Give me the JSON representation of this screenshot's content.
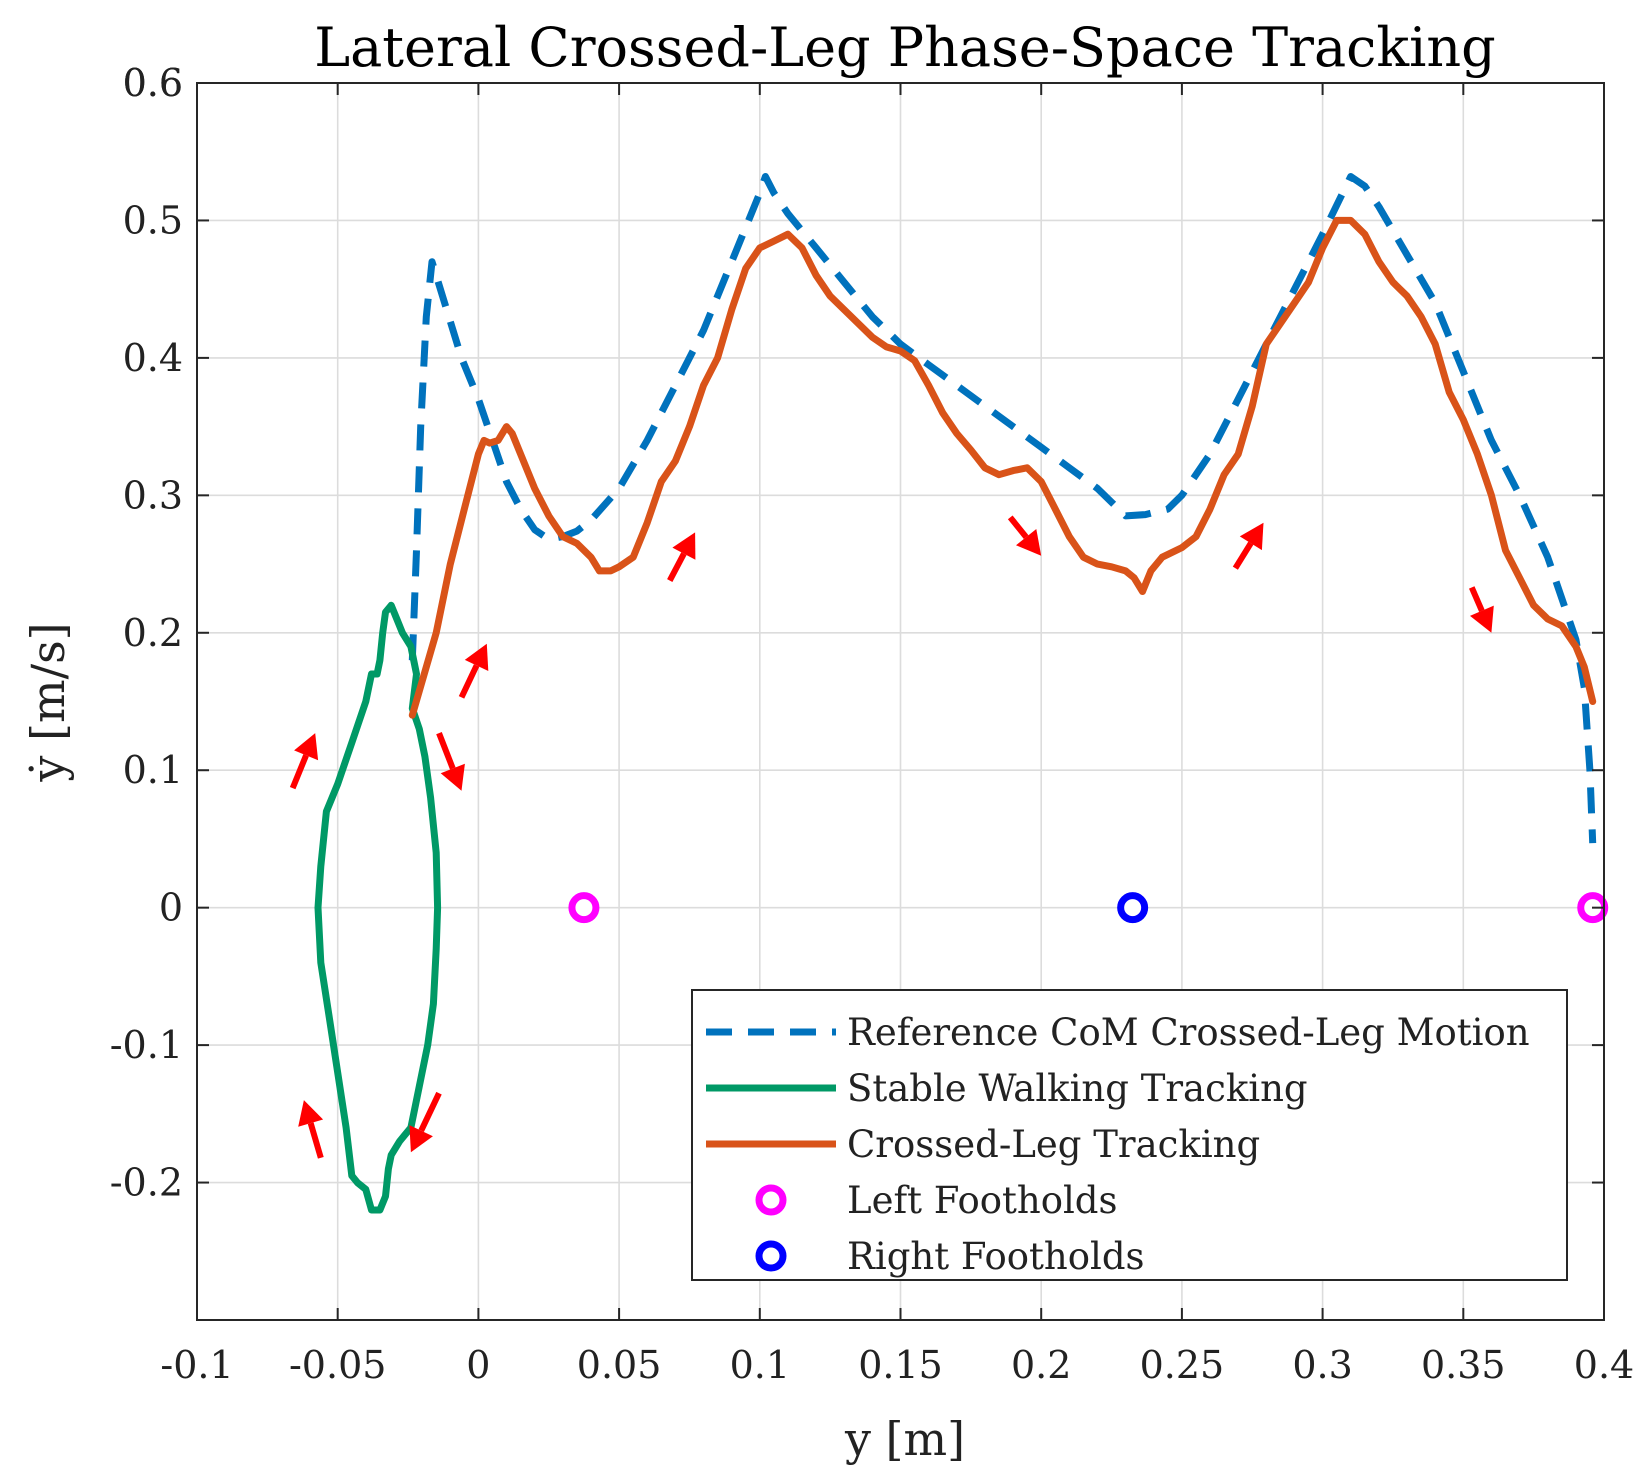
{
  "chart_data": {
    "type": "line",
    "title": "Lateral Crossed-Leg Phase-Space Tracking",
    "xlabel": "y [m]",
    "ylabel": "ẏ [m/s]",
    "xlim": [
      -0.1,
      0.4
    ],
    "ylim": [
      -0.3,
      0.6
    ],
    "xticks": [
      -0.1,
      -0.05,
      0,
      0.05,
      0.1,
      0.15,
      0.2,
      0.25,
      0.3,
      0.35,
      0.4
    ],
    "xtick_labels": [
      "-0.1",
      "-0.05",
      "0",
      "0.05",
      "0.1",
      "0.15",
      "0.2",
      "0.25",
      "0.3",
      "0.35",
      "0.4"
    ],
    "yticks": [
      -0.2,
      -0.1,
      0,
      0.1,
      0.2,
      0.3,
      0.4,
      0.5,
      0.6
    ],
    "ytick_labels": [
      "-0.2",
      "-0.1",
      "0",
      "0.1",
      "0.2",
      "0.3",
      "0.4",
      "0.5",
      "0.6"
    ],
    "grid": true,
    "legend_position": "bottom-right",
    "series": [
      {
        "name": "Reference CoM Crossed-Leg Motion",
        "style": "dashed",
        "color": "#0072BD",
        "points": [
          [
            -0.0235,
            0.18
          ],
          [
            -0.022,
            0.26
          ],
          [
            -0.0205,
            0.35
          ],
          [
            -0.0185,
            0.43
          ],
          [
            -0.0165,
            0.47
          ],
          [
            -0.012,
            0.44
          ],
          [
            -0.006,
            0.4
          ],
          [
            0.0,
            0.37
          ],
          [
            0.005,
            0.34
          ],
          [
            0.01,
            0.31
          ],
          [
            0.015,
            0.29
          ],
          [
            0.02,
            0.275
          ],
          [
            0.025,
            0.268
          ],
          [
            0.03,
            0.27
          ],
          [
            0.035,
            0.274
          ],
          [
            0.04,
            0.282
          ],
          [
            0.05,
            0.305
          ],
          [
            0.06,
            0.34
          ],
          [
            0.07,
            0.38
          ],
          [
            0.08,
            0.42
          ],
          [
            0.09,
            0.47
          ],
          [
            0.1,
            0.52
          ],
          [
            0.102,
            0.532
          ],
          [
            0.105,
            0.52
          ],
          [
            0.11,
            0.505
          ],
          [
            0.12,
            0.48
          ],
          [
            0.13,
            0.455
          ],
          [
            0.14,
            0.43
          ],
          [
            0.15,
            0.41
          ],
          [
            0.16,
            0.395
          ],
          [
            0.17,
            0.38
          ],
          [
            0.18,
            0.365
          ],
          [
            0.19,
            0.35
          ],
          [
            0.2,
            0.335
          ],
          [
            0.21,
            0.32
          ],
          [
            0.22,
            0.305
          ],
          [
            0.225,
            0.295
          ],
          [
            0.23,
            0.285
          ],
          [
            0.237,
            0.286
          ],
          [
            0.245,
            0.29
          ],
          [
            0.25,
            0.3
          ],
          [
            0.26,
            0.33
          ],
          [
            0.27,
            0.37
          ],
          [
            0.28,
            0.41
          ],
          [
            0.29,
            0.45
          ],
          [
            0.3,
            0.49
          ],
          [
            0.31,
            0.532
          ],
          [
            0.315,
            0.525
          ],
          [
            0.32,
            0.51
          ],
          [
            0.33,
            0.475
          ],
          [
            0.34,
            0.44
          ],
          [
            0.35,
            0.39
          ],
          [
            0.36,
            0.34
          ],
          [
            0.37,
            0.3
          ],
          [
            0.38,
            0.255
          ],
          [
            0.385,
            0.225
          ],
          [
            0.39,
            0.195
          ],
          [
            0.393,
            0.16
          ],
          [
            0.395,
            0.1
          ],
          [
            0.396,
            0.047
          ]
        ]
      },
      {
        "name": "Stable Walking Tracking",
        "style": "solid",
        "color": "#009966",
        "points": [
          [
            -0.0235,
            0.145
          ],
          [
            -0.022,
            0.17
          ],
          [
            -0.024,
            0.19
          ],
          [
            -0.027,
            0.2
          ],
          [
            -0.029,
            0.21
          ],
          [
            -0.031,
            0.22
          ],
          [
            -0.033,
            0.215
          ],
          [
            -0.034,
            0.2
          ],
          [
            -0.035,
            0.18
          ],
          [
            -0.036,
            0.17
          ],
          [
            -0.038,
            0.17
          ],
          [
            -0.04,
            0.15
          ],
          [
            -0.045,
            0.12
          ],
          [
            -0.05,
            0.09
          ],
          [
            -0.054,
            0.07
          ],
          [
            -0.056,
            0.03
          ],
          [
            -0.057,
            0.0
          ],
          [
            -0.056,
            -0.04
          ],
          [
            -0.053,
            -0.08
          ],
          [
            -0.05,
            -0.12
          ],
          [
            -0.047,
            -0.16
          ],
          [
            -0.045,
            -0.195
          ],
          [
            -0.043,
            -0.2
          ],
          [
            -0.04,
            -0.205
          ],
          [
            -0.038,
            -0.22
          ],
          [
            -0.035,
            -0.22
          ],
          [
            -0.033,
            -0.21
          ],
          [
            -0.032,
            -0.19
          ],
          [
            -0.031,
            -0.18
          ],
          [
            -0.028,
            -0.17
          ],
          [
            -0.026,
            -0.165
          ],
          [
            -0.024,
            -0.16
          ],
          [
            -0.021,
            -0.13
          ],
          [
            -0.018,
            -0.1
          ],
          [
            -0.016,
            -0.07
          ],
          [
            -0.015,
            -0.03
          ],
          [
            -0.0145,
            0.0
          ],
          [
            -0.015,
            0.04
          ],
          [
            -0.017,
            0.08
          ],
          [
            -0.019,
            0.11
          ],
          [
            -0.021,
            0.13
          ],
          [
            -0.0235,
            0.145
          ]
        ]
      },
      {
        "name": "Crossed-Leg Tracking",
        "style": "solid",
        "color": "#D95319",
        "points": [
          [
            -0.0235,
            0.14
          ],
          [
            -0.015,
            0.2
          ],
          [
            -0.01,
            0.25
          ],
          [
            -0.005,
            0.29
          ],
          [
            0.0,
            0.33
          ],
          [
            0.002,
            0.34
          ],
          [
            0.004,
            0.338
          ],
          [
            0.007,
            0.34
          ],
          [
            0.01,
            0.35
          ],
          [
            0.012,
            0.345
          ],
          [
            0.015,
            0.33
          ],
          [
            0.02,
            0.305
          ],
          [
            0.025,
            0.285
          ],
          [
            0.03,
            0.27
          ],
          [
            0.035,
            0.265
          ],
          [
            0.04,
            0.255
          ],
          [
            0.043,
            0.245
          ],
          [
            0.047,
            0.245
          ],
          [
            0.05,
            0.248
          ],
          [
            0.055,
            0.255
          ],
          [
            0.06,
            0.28
          ],
          [
            0.065,
            0.31
          ],
          [
            0.07,
            0.325
          ],
          [
            0.075,
            0.35
          ],
          [
            0.08,
            0.38
          ],
          [
            0.085,
            0.4
          ],
          [
            0.09,
            0.435
          ],
          [
            0.095,
            0.465
          ],
          [
            0.1,
            0.48
          ],
          [
            0.105,
            0.485
          ],
          [
            0.11,
            0.49
          ],
          [
            0.115,
            0.48
          ],
          [
            0.12,
            0.46
          ],
          [
            0.125,
            0.445
          ],
          [
            0.13,
            0.435
          ],
          [
            0.135,
            0.425
          ],
          [
            0.14,
            0.415
          ],
          [
            0.145,
            0.408
          ],
          [
            0.15,
            0.405
          ],
          [
            0.155,
            0.398
          ],
          [
            0.16,
            0.38
          ],
          [
            0.165,
            0.36
          ],
          [
            0.17,
            0.345
          ],
          [
            0.175,
            0.333
          ],
          [
            0.18,
            0.32
          ],
          [
            0.185,
            0.315
          ],
          [
            0.19,
            0.318
          ],
          [
            0.195,
            0.32
          ],
          [
            0.2,
            0.31
          ],
          [
            0.205,
            0.29
          ],
          [
            0.21,
            0.27
          ],
          [
            0.215,
            0.255
          ],
          [
            0.22,
            0.25
          ],
          [
            0.225,
            0.248
          ],
          [
            0.23,
            0.245
          ],
          [
            0.233,
            0.24
          ],
          [
            0.236,
            0.23
          ],
          [
            0.239,
            0.245
          ],
          [
            0.243,
            0.255
          ],
          [
            0.25,
            0.262
          ],
          [
            0.255,
            0.27
          ],
          [
            0.26,
            0.29
          ],
          [
            0.265,
            0.315
          ],
          [
            0.27,
            0.33
          ],
          [
            0.275,
            0.365
          ],
          [
            0.28,
            0.41
          ],
          [
            0.285,
            0.425
          ],
          [
            0.29,
            0.44
          ],
          [
            0.295,
            0.455
          ],
          [
            0.3,
            0.48
          ],
          [
            0.305,
            0.5
          ],
          [
            0.31,
            0.5
          ],
          [
            0.315,
            0.49
          ],
          [
            0.32,
            0.47
          ],
          [
            0.325,
            0.455
          ],
          [
            0.33,
            0.445
          ],
          [
            0.335,
            0.43
          ],
          [
            0.34,
            0.41
          ],
          [
            0.345,
            0.375
          ],
          [
            0.35,
            0.355
          ],
          [
            0.355,
            0.33
          ],
          [
            0.36,
            0.3
          ],
          [
            0.365,
            0.26
          ],
          [
            0.37,
            0.24
          ],
          [
            0.375,
            0.22
          ],
          [
            0.38,
            0.21
          ],
          [
            0.385,
            0.205
          ],
          [
            0.39,
            0.19
          ],
          [
            0.393,
            0.175
          ],
          [
            0.396,
            0.15
          ]
        ]
      },
      {
        "name": "Left Footholds",
        "style": "marker",
        "color": "#FF00FF",
        "points": [
          [
            0.0375,
            0.0
          ],
          [
            0.396,
            0.0
          ]
        ]
      },
      {
        "name": "Right Footholds",
        "style": "marker",
        "color": "#0000FF",
        "points": [
          [
            0.2325,
            0.0
          ]
        ]
      }
    ],
    "arrows": {
      "color": "#FF0000",
      "items": [
        [
          -0.066,
          0.087,
          -0.058,
          0.127
        ],
        [
          -0.006,
          0.153,
          0.003,
          0.192
        ],
        [
          -0.014,
          0.127,
          -0.006,
          0.085
        ],
        [
          0.068,
          0.238,
          0.077,
          0.273
        ],
        [
          0.189,
          0.284,
          0.2,
          0.256
        ],
        [
          0.269,
          0.247,
          0.279,
          0.28
        ],
        [
          0.353,
          0.233,
          0.36,
          0.2
        ],
        [
          -0.056,
          -0.182,
          -0.062,
          -0.14
        ],
        [
          -0.014,
          -0.135,
          -0.024,
          -0.178
        ]
      ]
    }
  }
}
